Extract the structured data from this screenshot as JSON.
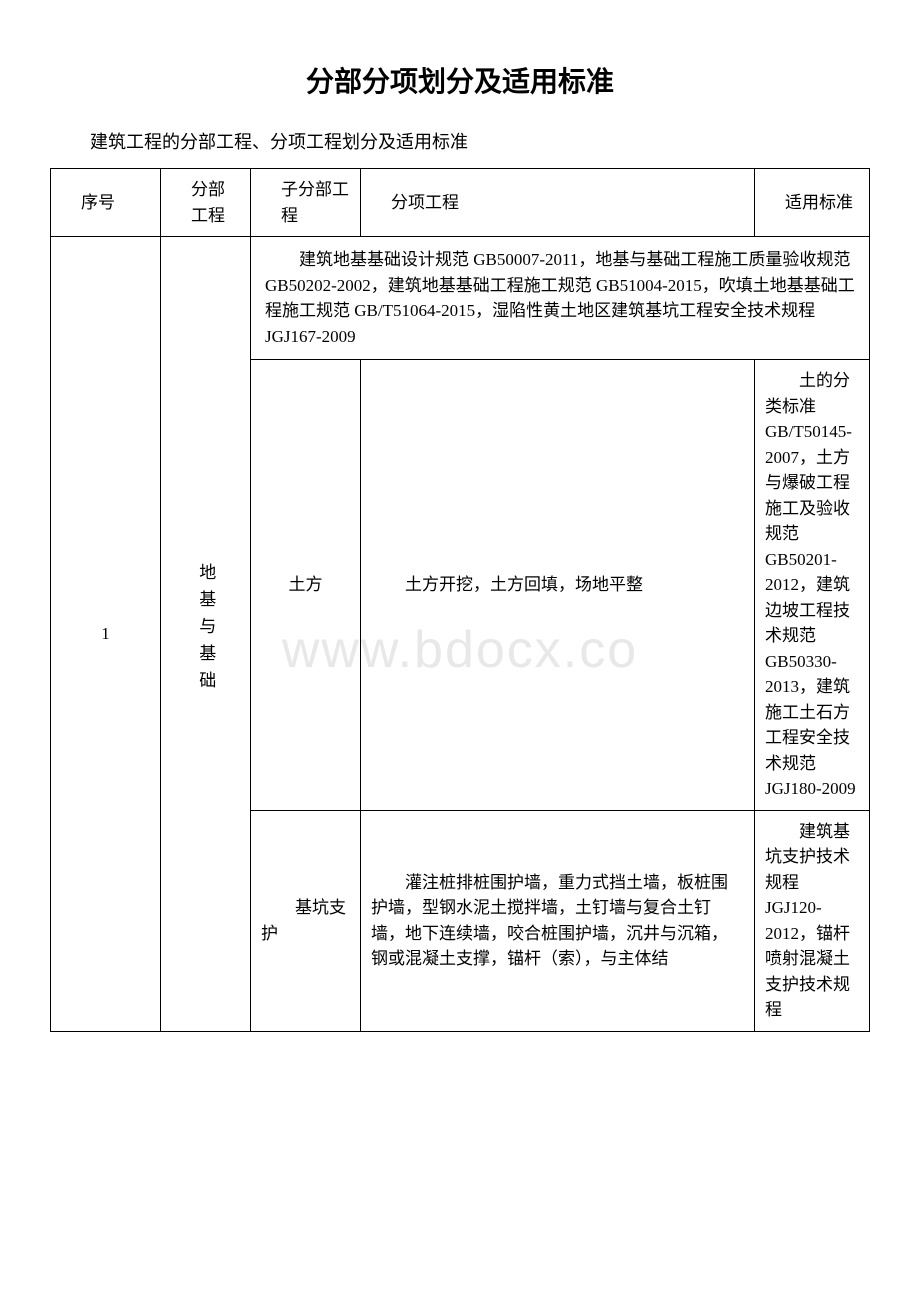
{
  "page": {
    "title": "分部分项划分及适用标准",
    "subtitle": "建筑工程的分部工程、分项工程划分及适用标准",
    "watermark": "www.bdocx.co"
  },
  "table": {
    "headers": {
      "seq": "序号",
      "part": "分部工程",
      "sub": "子分部工程",
      "item": "分项工程",
      "std": "适用标准"
    },
    "rows": {
      "seq1": "1",
      "part1": "地基与基础",
      "banner1": "　　建筑地基基础设计规范 GB50007-2011，地基与基础工程施工质量验收规范 GB50202-2002，建筑地基基础工程施工规范 GB51004-2015，吹填土地基基础工程施工规范 GB/T51064-2015，湿陷性黄土地区建筑基坑工程安全技术规程 JGJ167-2009",
      "row1": {
        "sub": "土方",
        "item": "　　土方开挖，土方回填，场地平整",
        "std": "　　土的分类标准 GB/T50145-2007，土方与爆破工程施工及验收规范 GB50201-2012，建筑边坡工程技术规范 GB50330-2013，建筑施工土石方工程安全技术规范 JGJ180-2009"
      },
      "row2": {
        "sub": "　　基坑支护",
        "item": "　　灌注桩排桩围护墙，重力式挡土墙，板桩围护墙，型钢水泥土搅拌墙，土钉墙与复合土钉墙，地下连续墙，咬合桩围护墙，沉井与沉箱，钢或混凝土支撑，锚杆（索），与主体结",
        "std": "　　建筑基坑支护技术规程 JGJ120-2012，锚杆喷射混凝土支护技术规程"
      }
    }
  },
  "style": {
    "text_color": "#000000",
    "bg_color": "#ffffff",
    "border_color": "#000000",
    "watermark_color": "#e8e8e8",
    "title_fontsize": 28,
    "body_fontsize": 17,
    "subtitle_fontsize": 18,
    "watermark_fontsize": 52
  }
}
